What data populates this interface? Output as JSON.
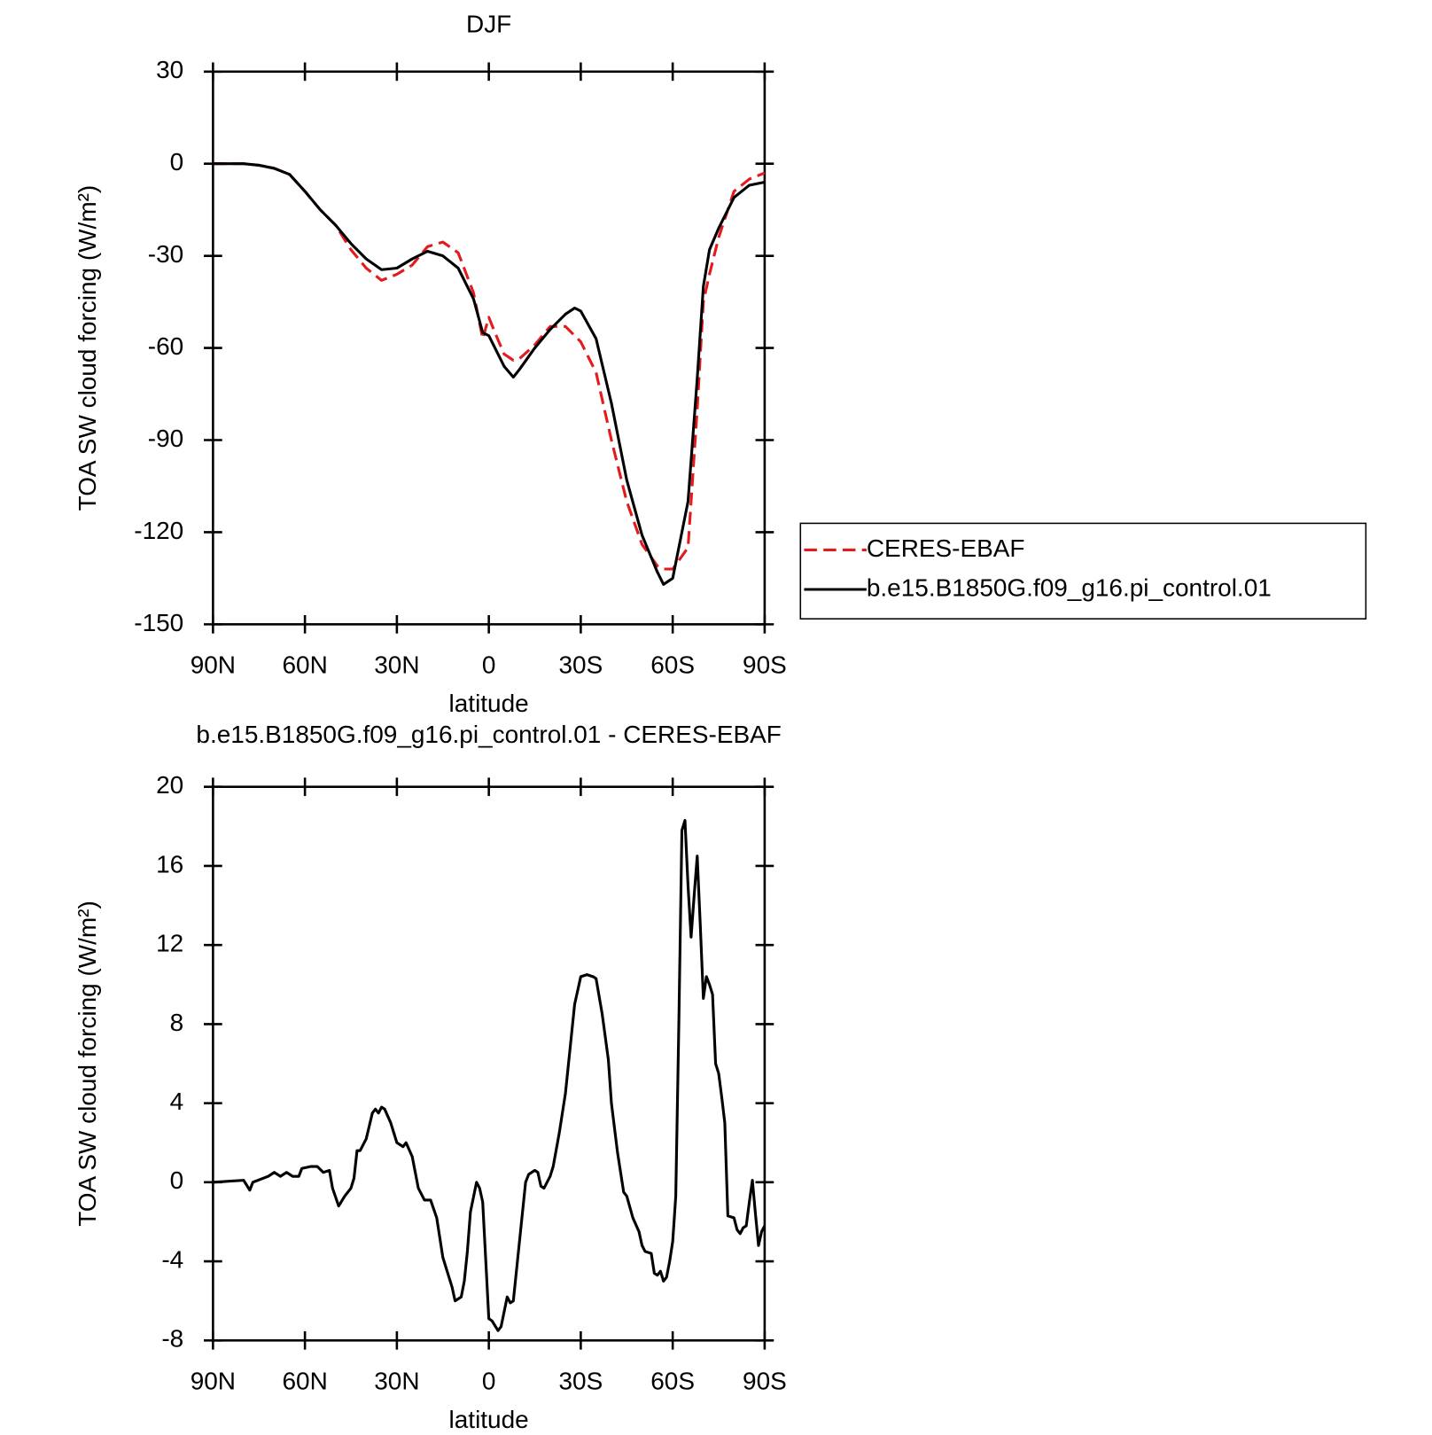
{
  "chart_data": [
    {
      "type": "line",
      "title": "DJF",
      "xlabel": "latitude",
      "ylabel": "TOA SW cloud forcing (W/m²)",
      "x": [
        90,
        85,
        80,
        75,
        70,
        65,
        60,
        55,
        50,
        45,
        40,
        35,
        30,
        25,
        20,
        15,
        10,
        5,
        2,
        0,
        -2,
        -5,
        -8,
        -10,
        -15,
        -20,
        -25,
        -28,
        -30,
        -35,
        -40,
        -45,
        -50,
        -55,
        -57,
        -60,
        -65,
        -68,
        -70,
        -72,
        -75,
        -80,
        -85,
        -90
      ],
      "xlim": [
        90,
        -90
      ],
      "xticks": [
        {
          "value": 90,
          "label": "90N"
        },
        {
          "value": 60,
          "label": "60N"
        },
        {
          "value": 30,
          "label": "30N"
        },
        0,
        {
          "value": -30,
          "label": "30S"
        },
        {
          "value": -60,
          "label": "60S"
        },
        {
          "value": -90,
          "label": "90S"
        }
      ],
      "ylim": [
        -150,
        30
      ],
      "yticks": [
        -150,
        -120,
        -90,
        -60,
        -30,
        0,
        30
      ],
      "legend": "right",
      "series": [
        {
          "name": "CERES-EBAF",
          "color": "#e41a1c",
          "style": "dashed",
          "values": [
            0,
            0,
            0,
            -0.5,
            -1.5,
            -3.5,
            -9,
            -15,
            -20,
            -28,
            -34,
            -38,
            -36,
            -33,
            -27,
            -25.5,
            -29,
            -42,
            -57,
            -50,
            -55,
            -62,
            -64,
            -63.5,
            -59,
            -53,
            -53,
            -56,
            -58,
            -68,
            -90,
            -110,
            -124,
            -131,
            -132,
            -132,
            -125,
            -80,
            -45,
            -36,
            -24,
            -9,
            -5,
            -3
          ]
        },
        {
          "name": "b.e15.B1850G.f09_g16.pi_control.01",
          "color": "#000000",
          "style": "solid",
          "values": [
            0,
            0,
            0,
            -0.5,
            -1.5,
            -3.5,
            -9,
            -15,
            -20,
            -26,
            -31,
            -34.5,
            -34,
            -31,
            -28.5,
            -30,
            -34,
            -44,
            -55,
            -56,
            -60,
            -66,
            -69.5,
            -67,
            -60,
            -54,
            -49,
            -47,
            -48,
            -57,
            -78,
            -103,
            -121,
            -133,
            -137,
            -135,
            -110,
            -70,
            -40,
            -28,
            -21,
            -11,
            -7,
            -6
          ]
        }
      ]
    },
    {
      "type": "line",
      "title": "b.e15.B1850G.f09_g16.pi_control.01 - CERES-EBAF",
      "xlabel": "latitude",
      "ylabel": "TOA SW cloud forcing (W/m²)",
      "x": [
        90,
        80,
        78,
        77,
        72,
        70,
        68,
        66,
        64,
        62,
        61,
        58,
        56,
        54,
        52,
        51,
        49,
        47,
        45,
        44,
        43,
        42,
        40,
        38,
        37,
        36,
        35,
        34,
        32,
        30,
        28,
        27,
        25,
        23,
        21,
        19,
        17,
        15,
        12,
        11,
        9,
        8,
        7,
        6,
        4,
        3,
        2,
        0,
        -1,
        -3,
        -4,
        -6,
        -7,
        -8,
        -10,
        -12,
        -13,
        -15,
        -16,
        -17,
        -18,
        -20,
        -21,
        -23,
        -25,
        -27,
        -28,
        -30,
        -32,
        -34,
        -35,
        -37,
        -39,
        -40,
        -42,
        -44,
        -45,
        -47,
        -49,
        -50,
        -51,
        -53,
        -54,
        -55,
        -56,
        -57,
        -58,
        -59,
        -60,
        -61,
        -62,
        -63,
        -64,
        -65,
        -66,
        -67,
        -68,
        -69,
        -70,
        -71,
        -72,
        -73,
        -74,
        -75,
        -76,
        -77,
        -78,
        -80,
        -81,
        -82,
        -83,
        -84,
        -85,
        -86,
        -87,
        -88,
        -89,
        -90
      ],
      "xlim": [
        90,
        -90
      ],
      "xticks": [
        {
          "value": 90,
          "label": "90N"
        },
        {
          "value": 60,
          "label": "60N"
        },
        {
          "value": 30,
          "label": "30N"
        },
        0,
        {
          "value": -30,
          "label": "30S"
        },
        {
          "value": -60,
          "label": "60S"
        },
        {
          "value": -90,
          "label": "90S"
        }
      ],
      "ylim": [
        -8,
        20
      ],
      "yticks": [
        -8,
        -4,
        0,
        4,
        8,
        12,
        16,
        20
      ],
      "series": [
        {
          "color": "#000000",
          "style": "solid",
          "values": [
            0,
            0.1,
            -0.4,
            0,
            0.3,
            0.5,
            0.3,
            0.5,
            0.3,
            0.3,
            0.7,
            0.8,
            0.8,
            0.5,
            0.6,
            -0.3,
            -1.2,
            -0.7,
            -0.3,
            0.2,
            1.6,
            1.6,
            2.2,
            3.5,
            3.7,
            3.5,
            3.8,
            3.7,
            3.0,
            2.0,
            1.8,
            2.0,
            1.3,
            -0.3,
            -0.9,
            -0.9,
            -1.8,
            -3.8,
            -5.3,
            -6.0,
            -5.8,
            -5.0,
            -3.5,
            -1.5,
            0,
            -0.3,
            -1.0,
            -6.9,
            -7.0,
            -7.5,
            -7.3,
            -5.8,
            -6.1,
            -6.0,
            -3.0,
            0,
            0.4,
            0.6,
            0.5,
            -0.2,
            -0.3,
            0.3,
            0.8,
            2.5,
            4.5,
            7.5,
            9.0,
            10.4,
            10.5,
            10.4,
            10.3,
            8.5,
            6.2,
            4.0,
            1.5,
            -0.5,
            -0.7,
            -1.8,
            -2.5,
            -3.2,
            -3.5,
            -3.6,
            -4.6,
            -4.7,
            -4.5,
            -5.0,
            -4.8,
            -4.0,
            -3.0,
            -0.7,
            8.0,
            17.8,
            18.3,
            15.0,
            12.4,
            14.5,
            16.5,
            13.0,
            9.3,
            10.4,
            10.0,
            9.5,
            6.0,
            5.5,
            4.3,
            3.0,
            -1.7,
            -1.8,
            -2.4,
            -2.6,
            -2.3,
            -2.2,
            -1.0,
            0.1,
            -1.6,
            -3.2,
            -2.5,
            -2.2
          ]
        }
      ]
    }
  ]
}
